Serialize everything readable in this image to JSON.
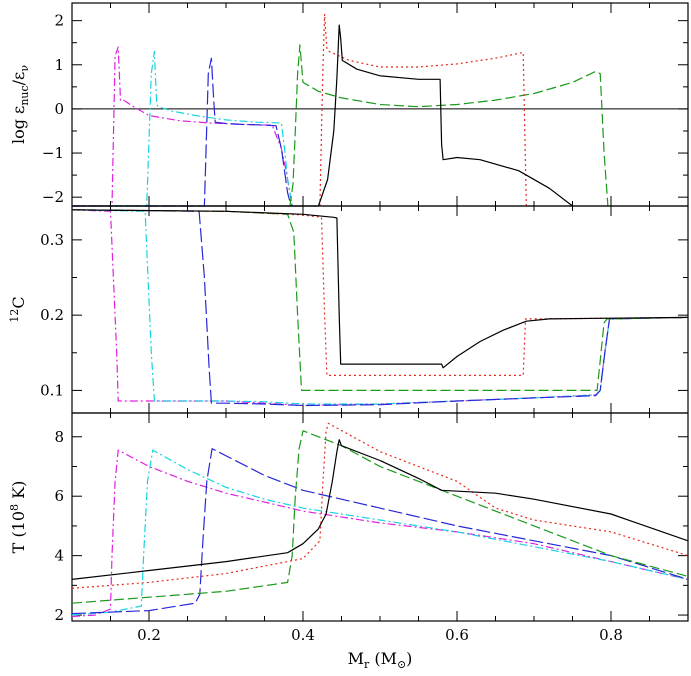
{
  "colors": {
    "black": "#000000",
    "red": "#e8281e",
    "green": "#1a9a1a",
    "blue": "#2828d8",
    "cyan": "#18d4e0",
    "magenta": "#e020e0"
  },
  "chart_data": [
    {
      "type": "line",
      "title": "",
      "xlabel": "",
      "ylabel": "log ε_nuc/ε_ν",
      "ylabel_parts": {
        "main": "log ε",
        "sub1": "nuc",
        "mid": "/ε",
        "sub2": "ν"
      },
      "xlim": [
        0.1,
        0.9
      ],
      "ylim": [
        -2.2,
        2.4
      ],
      "yticks": [
        -2,
        -1,
        0,
        1,
        2
      ],
      "ytick_labels": [
        "−2",
        "−1",
        "0",
        "1",
        "2"
      ],
      "hline": 0,
      "series": [
        {
          "color": "magenta",
          "dash": "8,3,2,3",
          "x": [
            0.1,
            0.152,
            0.156,
            0.16,
            0.163,
            0.165,
            0.18,
            0.2,
            0.24,
            0.28,
            0.32,
            0.36,
            0.372,
            0.378,
            0.383,
            0.386
          ],
          "y": [
            -2.2,
            -2.2,
            1.2,
            1.4,
            0.2,
            0.22,
            0.05,
            -0.15,
            -0.27,
            -0.32,
            -0.35,
            -0.37,
            -0.9,
            -1.4,
            -1.9,
            -2.2
          ]
        },
        {
          "color": "cyan",
          "dash": "8,3,2,3",
          "x": [
            0.1,
            0.197,
            0.203,
            0.207,
            0.21,
            0.212,
            0.23,
            0.26,
            0.3,
            0.34,
            0.372,
            0.376,
            0.38,
            0.383,
            0.386
          ],
          "y": [
            -2.2,
            -2.2,
            0.8,
            1.3,
            0.1,
            0.05,
            -0.05,
            -0.15,
            -0.25,
            -0.3,
            -0.32,
            -0.9,
            -1.6,
            -1.9,
            -2.2
          ]
        },
        {
          "color": "blue",
          "dash": "14,4",
          "x": [
            0.1,
            0.272,
            0.277,
            0.281,
            0.284,
            0.286,
            0.3,
            0.32,
            0.34,
            0.365,
            0.372,
            0.376,
            0.38,
            0.383,
            0.386
          ],
          "y": [
            -2.2,
            -2.2,
            0.8,
            1.15,
            0.2,
            -0.3,
            -0.33,
            -0.35,
            -0.36,
            -0.38,
            -0.9,
            -1.4,
            -1.9,
            -2.1,
            -2.2
          ]
        },
        {
          "color": "green",
          "dash": "10,4",
          "x": [
            0.383,
            0.387,
            0.39,
            0.393,
            0.396,
            0.4,
            0.41,
            0.42,
            0.45,
            0.5,
            0.55,
            0.6,
            0.65,
            0.7,
            0.75,
            0.78,
            0.786,
            0.791,
            0.796
          ],
          "y": [
            -2.2,
            -1.7,
            -0.5,
            0.8,
            1.45,
            0.6,
            0.5,
            0.4,
            0.25,
            0.1,
            0.05,
            0.1,
            0.2,
            0.35,
            0.6,
            0.85,
            0.8,
            -1.0,
            -2.2
          ]
        },
        {
          "color": "red",
          "dash": "2,3",
          "x": [
            0.422,
            0.424,
            0.426,
            0.428,
            0.431,
            0.434,
            0.46,
            0.5,
            0.55,
            0.6,
            0.65,
            0.686,
            0.688,
            0.69
          ],
          "y": [
            -2.2,
            -0.5,
            1.0,
            2.15,
            1.35,
            1.3,
            1.1,
            0.95,
            0.95,
            1.02,
            1.15,
            1.28,
            -0.5,
            -2.2
          ]
        },
        {
          "color": "black",
          "dash": "",
          "x": [
            0.1,
            0.42,
            0.432,
            0.44,
            0.444,
            0.447,
            0.449,
            0.451,
            0.47,
            0.5,
            0.55,
            0.578,
            0.58,
            0.582,
            0.6,
            0.63,
            0.68,
            0.72,
            0.75
          ],
          "y": [
            -2.2,
            -2.2,
            -1.6,
            -0.5,
            0.7,
            1.9,
            1.6,
            1.1,
            0.9,
            0.75,
            0.67,
            0.67,
            -0.8,
            -1.15,
            -1.1,
            -1.15,
            -1.4,
            -1.8,
            -2.2
          ]
        }
      ]
    },
    {
      "type": "line",
      "title": "",
      "xlabel": "",
      "ylabel": "12C",
      "ylabel_parts": {
        "sup": "12",
        "main": "C"
      },
      "xlim": [
        0.1,
        0.9
      ],
      "ylim": [
        0.07,
        0.345
      ],
      "yticks": [
        0.1,
        0.2,
        0.3
      ],
      "ytick_labels": [
        "0.1",
        "0.2",
        "0.3"
      ],
      "series": [
        {
          "color": "magenta",
          "dash": "8,3,2,3",
          "x": [
            0.1,
            0.15,
            0.158,
            0.16,
            0.2,
            0.25,
            0.3,
            0.35,
            0.4,
            0.5,
            0.6,
            0.7,
            0.78,
            0.786,
            0.792,
            0.798,
            0.9
          ],
          "y": [
            0.34,
            0.338,
            0.15,
            0.086,
            0.086,
            0.086,
            0.086,
            0.083,
            0.08,
            0.082,
            0.086,
            0.09,
            0.094,
            0.1,
            0.15,
            0.195,
            0.197
          ]
        },
        {
          "color": "cyan",
          "dash": "8,3,2,3",
          "x": [
            0.1,
            0.195,
            0.203,
            0.207,
            0.25,
            0.3,
            0.35,
            0.4,
            0.5,
            0.6,
            0.7,
            0.78,
            0.786,
            0.792,
            0.798,
            0.9
          ],
          "y": [
            0.34,
            0.338,
            0.15,
            0.086,
            0.086,
            0.086,
            0.085,
            0.082,
            0.082,
            0.086,
            0.09,
            0.094,
            0.1,
            0.15,
            0.195,
            0.197
          ]
        },
        {
          "color": "blue",
          "dash": "14,4",
          "x": [
            0.1,
            0.265,
            0.272,
            0.278,
            0.281,
            0.3,
            0.35,
            0.4,
            0.5,
            0.6,
            0.7,
            0.78,
            0.786,
            0.792,
            0.798,
            0.9
          ],
          "y": [
            0.34,
            0.338,
            0.25,
            0.13,
            0.083,
            0.083,
            0.082,
            0.08,
            0.081,
            0.086,
            0.09,
            0.093,
            0.1,
            0.15,
            0.195,
            0.197
          ]
        },
        {
          "color": "green",
          "dash": "10,4",
          "x": [
            0.1,
            0.3,
            0.38,
            0.388,
            0.393,
            0.398,
            0.45,
            0.55,
            0.65,
            0.75,
            0.782,
            0.787,
            0.791,
            0.795,
            0.9
          ],
          "y": [
            0.34,
            0.338,
            0.334,
            0.31,
            0.2,
            0.1,
            0.1,
            0.1,
            0.1,
            0.1,
            0.1,
            0.15,
            0.19,
            0.195,
            0.197
          ]
        },
        {
          "color": "red",
          "dash": "2,3",
          "x": [
            0.1,
            0.3,
            0.4,
            0.424,
            0.428,
            0.431,
            0.5,
            0.6,
            0.686,
            0.689,
            0.7,
            0.8,
            0.9
          ],
          "y": [
            0.34,
            0.338,
            0.333,
            0.33,
            0.2,
            0.12,
            0.12,
            0.12,
            0.12,
            0.195,
            0.195,
            0.196,
            0.197
          ]
        },
        {
          "color": "black",
          "dash": "",
          "x": [
            0.1,
            0.3,
            0.4,
            0.44,
            0.444,
            0.447,
            0.449,
            0.5,
            0.55,
            0.58,
            0.582,
            0.6,
            0.63,
            0.66,
            0.69,
            0.72,
            0.8,
            0.9
          ],
          "y": [
            0.34,
            0.338,
            0.334,
            0.33,
            0.329,
            0.2,
            0.135,
            0.135,
            0.135,
            0.135,
            0.13,
            0.145,
            0.165,
            0.18,
            0.192,
            0.195,
            0.196,
            0.197
          ]
        }
      ]
    },
    {
      "type": "line",
      "title": "",
      "xlabel": "M_r (M_⊙)",
      "xlabel_parts": {
        "main": "M",
        "sub": "r",
        "rest": " (M",
        "sym": "⊙",
        "close": ")"
      },
      "ylabel": "T (10^8 K)",
      "ylabel_parts": {
        "pre": "T (10",
        "sup": "8",
        "post": " K)"
      },
      "xlim": [
        0.1,
        0.9
      ],
      "ylim": [
        1.8,
        8.8
      ],
      "xticks": [
        0.2,
        0.4,
        0.6,
        0.8
      ],
      "xtick_labels": [
        "0.2",
        "0.4",
        "0.6",
        "0.8"
      ],
      "yticks": [
        2,
        4,
        6,
        8
      ],
      "ytick_labels": [
        "2",
        "4",
        "6",
        "8"
      ],
      "series": [
        {
          "color": "magenta",
          "dash": "8,3,2,3",
          "x": [
            0.1,
            0.13,
            0.15,
            0.152,
            0.156,
            0.16,
            0.2,
            0.25,
            0.3,
            0.35,
            0.4,
            0.5,
            0.6,
            0.7,
            0.8,
            0.9
          ],
          "y": [
            1.95,
            2.0,
            2.2,
            4.0,
            6.5,
            7.55,
            7.0,
            6.5,
            6.1,
            5.8,
            5.5,
            5.1,
            4.8,
            4.4,
            3.8,
            3.2
          ]
        },
        {
          "color": "cyan",
          "dash": "8,3,2,3",
          "x": [
            0.1,
            0.15,
            0.19,
            0.193,
            0.198,
            0.205,
            0.25,
            0.3,
            0.35,
            0.4,
            0.5,
            0.6,
            0.7,
            0.8,
            0.9
          ],
          "y": [
            2.0,
            2.1,
            2.3,
            4.0,
            6.5,
            7.55,
            6.9,
            6.3,
            5.9,
            5.6,
            5.2,
            4.8,
            4.3,
            3.8,
            3.2
          ]
        },
        {
          "color": "blue",
          "dash": "14,4",
          "x": [
            0.1,
            0.2,
            0.26,
            0.266,
            0.27,
            0.275,
            0.282,
            0.35,
            0.4,
            0.5,
            0.6,
            0.7,
            0.8,
            0.9
          ],
          "y": [
            2.05,
            2.15,
            2.4,
            2.7,
            4.5,
            6.5,
            7.6,
            6.7,
            6.2,
            5.6,
            5.0,
            4.5,
            4.0,
            3.2
          ]
        },
        {
          "color": "green",
          "dash": "10,4",
          "x": [
            0.1,
            0.2,
            0.3,
            0.38,
            0.386,
            0.39,
            0.395,
            0.4,
            0.45,
            0.5,
            0.6,
            0.7,
            0.8,
            0.9
          ],
          "y": [
            2.4,
            2.6,
            2.8,
            3.1,
            4.0,
            6.0,
            7.6,
            8.2,
            7.7,
            7.0,
            6.0,
            5.0,
            4.0,
            3.3
          ]
        },
        {
          "color": "red",
          "dash": "2,3",
          "x": [
            0.1,
            0.2,
            0.3,
            0.4,
            0.422,
            0.426,
            0.43,
            0.433,
            0.5,
            0.55,
            0.6,
            0.65,
            0.7,
            0.8,
            0.9
          ],
          "y": [
            2.9,
            3.1,
            3.4,
            3.9,
            4.5,
            6.5,
            8.2,
            8.45,
            7.5,
            7.0,
            6.5,
            5.6,
            5.2,
            4.8,
            4.0
          ]
        },
        {
          "color": "black",
          "dash": "",
          "x": [
            0.1,
            0.2,
            0.3,
            0.38,
            0.4,
            0.42,
            0.43,
            0.438,
            0.444,
            0.447,
            0.45,
            0.5,
            0.55,
            0.58,
            0.65,
            0.7,
            0.8,
            0.9
          ],
          "y": [
            3.2,
            3.5,
            3.8,
            4.1,
            4.4,
            4.9,
            5.4,
            6.5,
            7.5,
            7.9,
            7.7,
            7.2,
            6.6,
            6.2,
            6.1,
            5.9,
            5.4,
            4.5
          ]
        }
      ]
    }
  ]
}
